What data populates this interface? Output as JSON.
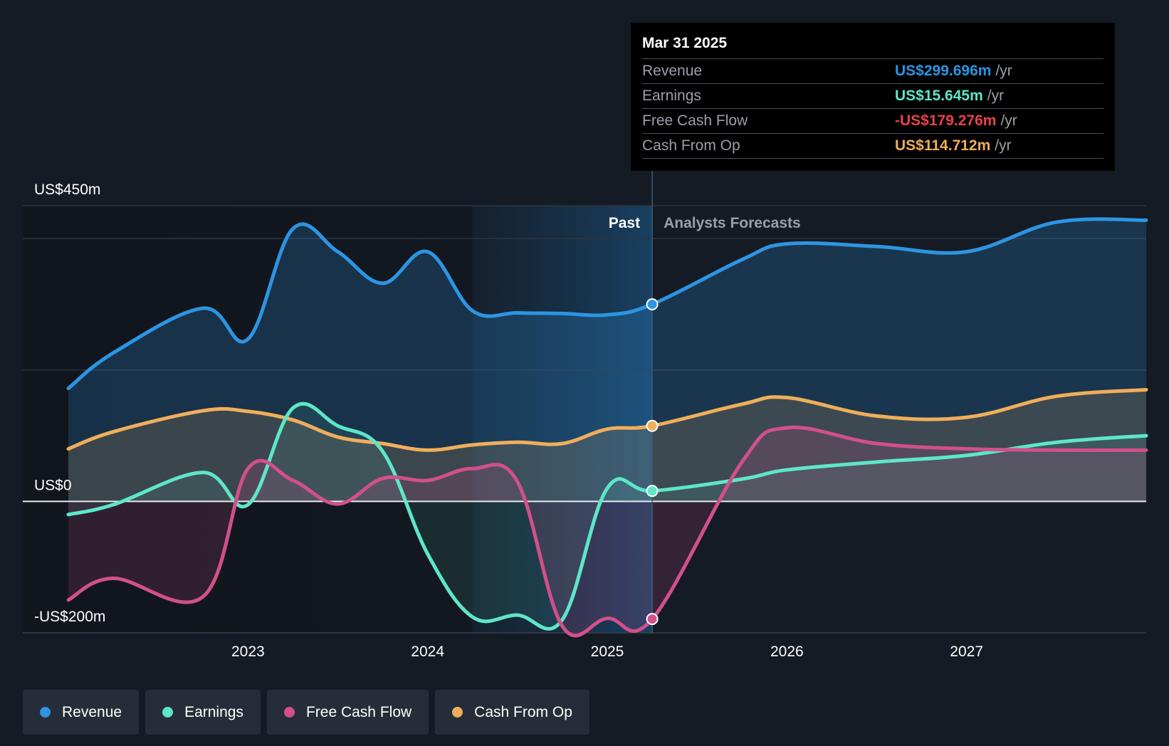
{
  "tooltip": {
    "date": "Mar 31 2025",
    "rows": [
      {
        "label": "Revenue",
        "value": "US$299.696m",
        "unit": "/yr",
        "color": "#2d95e3"
      },
      {
        "label": "Earnings",
        "value": "US$15.645m",
        "unit": "/yr",
        "color": "#5ee6c8"
      },
      {
        "label": "Free Cash Flow",
        "value": "-US$179.276m",
        "unit": "/yr",
        "color": "#e8414d"
      },
      {
        "label": "Cash From Op",
        "value": "US$114.712m",
        "unit": "/yr",
        "color": "#f0ae5b"
      }
    ]
  },
  "legend": [
    {
      "label": "Revenue",
      "color": "#2d95e3"
    },
    {
      "label": "Earnings",
      "color": "#5ee6c8"
    },
    {
      "label": "Free Cash Flow",
      "color": "#d2508a"
    },
    {
      "label": "Cash From Op",
      "color": "#f0ae5b"
    }
  ],
  "chart_data": {
    "type": "line",
    "ylim": [
      -200,
      450
    ],
    "y_tick_labels": [
      {
        "value": 450,
        "label": "US$450m"
      },
      {
        "value": 0,
        "label": "US$0"
      },
      {
        "value": -200,
        "label": "-US$200m"
      }
    ],
    "x_tick_labels": [
      {
        "value": 2023.0,
        "label": "2023"
      },
      {
        "value": 2024.0,
        "label": "2024"
      },
      {
        "value": 2025.0,
        "label": "2025"
      },
      {
        "value": 2026.0,
        "label": "2026"
      },
      {
        "value": 2027.0,
        "label": "2027"
      }
    ],
    "xlim": [
      2021.75,
      2027.5
    ],
    "divider_x": 2025.25,
    "highlight_range": [
      2024.25,
      2025.25
    ],
    "past_label": "Past",
    "forecast_label": "Analysts Forecasts",
    "series": [
      {
        "name": "Revenue",
        "color": "#2d95e3",
        "points": [
          [
            2022.0,
            172
          ],
          [
            2022.25,
            226
          ],
          [
            2022.75,
            294
          ],
          [
            2023.0,
            247
          ],
          [
            2023.25,
            415
          ],
          [
            2023.5,
            380
          ],
          [
            2023.75,
            332
          ],
          [
            2024.0,
            380
          ],
          [
            2024.25,
            290
          ],
          [
            2024.5,
            287
          ],
          [
            2024.75,
            286
          ],
          [
            2025.0,
            284
          ],
          [
            2025.25,
            300
          ],
          [
            2025.75,
            368
          ],
          [
            2026.0,
            392
          ],
          [
            2026.5,
            388
          ],
          [
            2027.0,
            380
          ],
          [
            2027.5,
            425
          ],
          [
            2028.0,
            428
          ]
        ]
      },
      {
        "name": "Earnings",
        "color": "#5ee6c8",
        "points": [
          [
            2022.0,
            -20
          ],
          [
            2022.25,
            -5
          ],
          [
            2022.75,
            44
          ],
          [
            2023.0,
            -5
          ],
          [
            2023.25,
            142
          ],
          [
            2023.5,
            115
          ],
          [
            2023.75,
            76
          ],
          [
            2024.0,
            -80
          ],
          [
            2024.25,
            -176
          ],
          [
            2024.5,
            -173
          ],
          [
            2024.75,
            -180
          ],
          [
            2025.0,
            20
          ],
          [
            2025.25,
            16
          ],
          [
            2025.75,
            34
          ],
          [
            2026.0,
            48
          ],
          [
            2026.5,
            60
          ],
          [
            2027.0,
            70
          ],
          [
            2027.5,
            90
          ],
          [
            2028.0,
            100
          ]
        ]
      },
      {
        "name": "Free Cash Flow",
        "color": "#d2508a",
        "points": [
          [
            2022.0,
            -150
          ],
          [
            2022.25,
            -117
          ],
          [
            2022.75,
            -145
          ],
          [
            2023.0,
            50
          ],
          [
            2023.25,
            32
          ],
          [
            2023.5,
            -4
          ],
          [
            2023.75,
            35
          ],
          [
            2024.0,
            32
          ],
          [
            2024.25,
            50
          ],
          [
            2024.5,
            30
          ],
          [
            2024.75,
            -190
          ],
          [
            2025.0,
            -178
          ],
          [
            2025.25,
            -179
          ],
          [
            2025.75,
            60
          ],
          [
            2026.0,
            112
          ],
          [
            2026.5,
            88
          ],
          [
            2027.0,
            80
          ],
          [
            2027.5,
            78
          ],
          [
            2028.0,
            78
          ]
        ]
      },
      {
        "name": "Cash From Op",
        "color": "#f0ae5b",
        "points": [
          [
            2022.0,
            80
          ],
          [
            2022.25,
            106
          ],
          [
            2022.75,
            138
          ],
          [
            2023.0,
            137
          ],
          [
            2023.25,
            124
          ],
          [
            2023.5,
            98
          ],
          [
            2023.75,
            88
          ],
          [
            2024.0,
            78
          ],
          [
            2024.25,
            86
          ],
          [
            2024.5,
            90
          ],
          [
            2024.75,
            88
          ],
          [
            2025.0,
            110
          ],
          [
            2025.25,
            115
          ],
          [
            2025.75,
            148
          ],
          [
            2026.0,
            158
          ],
          [
            2026.5,
            130
          ],
          [
            2027.0,
            128
          ],
          [
            2027.5,
            160
          ],
          [
            2028.0,
            170
          ]
        ]
      }
    ]
  }
}
